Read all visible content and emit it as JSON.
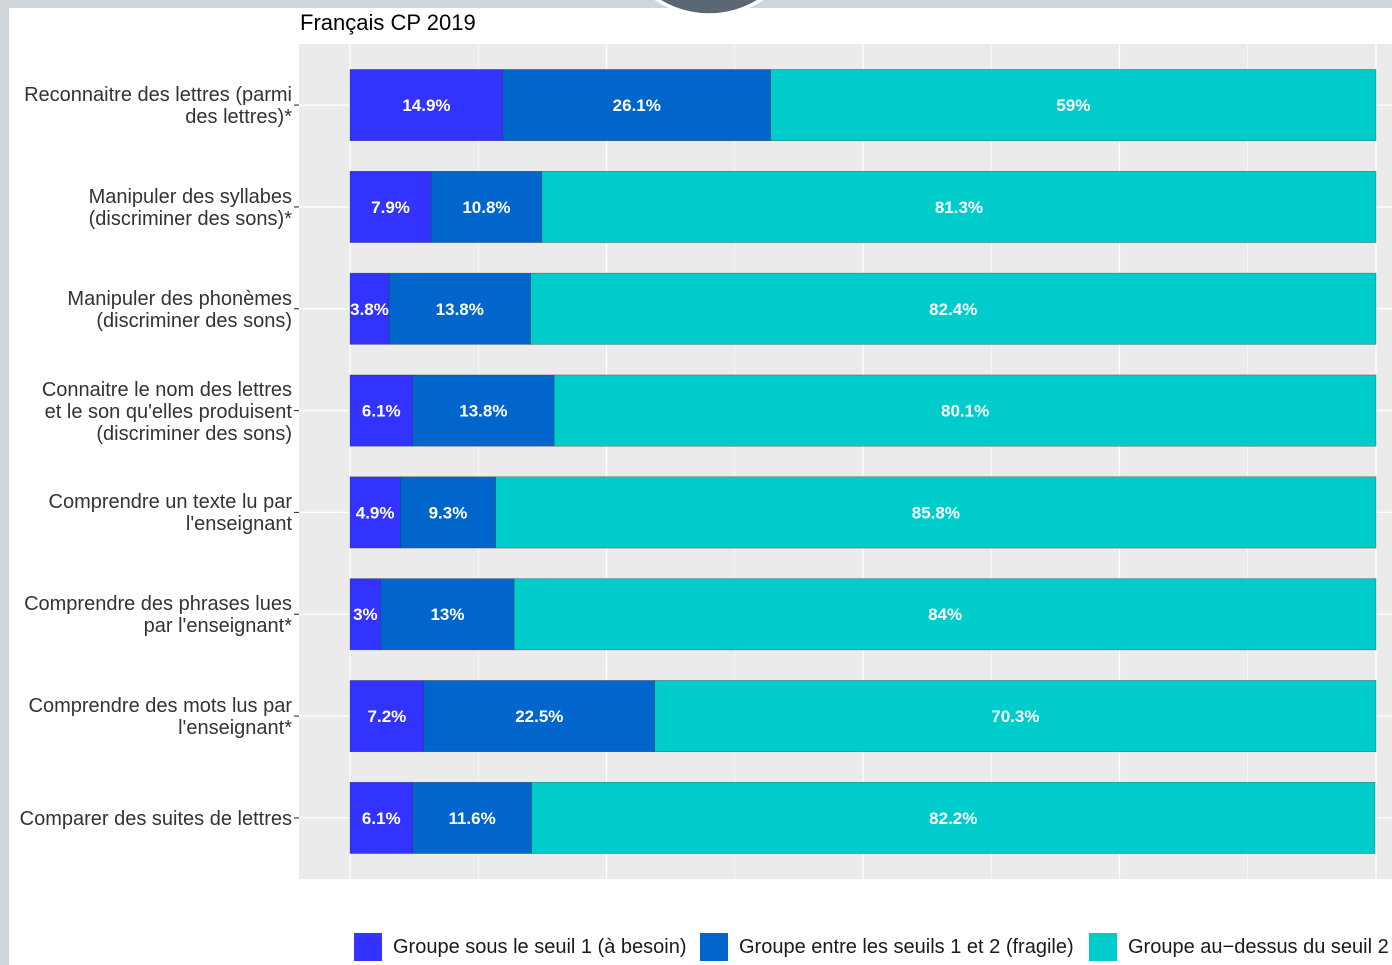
{
  "chart_data": {
    "type": "bar",
    "orientation": "horizontal",
    "stacked": true,
    "title": "Français CP 2019",
    "categories": [
      "Reconnaitre des lettres (parmi\ndes lettres)*",
      "Manipuler des syllabes\n(discriminer des sons)*",
      "Manipuler des phonèmes\n(discriminer des sons)",
      "Connaitre le nom des lettres\net le son qu'elles produisent\n(discriminer des sons)",
      "Comprendre un texte lu par\nl'enseignant",
      "Comprendre des phrases lues\npar l'enseignant*",
      "Comprendre des mots lus par\nl'enseignant*",
      "Comparer des suites de lettres"
    ],
    "series": [
      {
        "name": "Groupe sous le seuil 1 (à besoin)",
        "color": "#3333FF",
        "values": [
          14.9,
          7.9,
          3.8,
          6.1,
          4.9,
          3,
          7.2,
          6.1
        ]
      },
      {
        "name": "Groupe entre les seuils 1 et 2 (fragile)",
        "color": "#0066CC",
        "values": [
          26.1,
          10.8,
          13.8,
          13.8,
          9.3,
          13,
          22.5,
          11.6
        ]
      },
      {
        "name": "Groupe au−dessus du seuil 2",
        "color": "#00CCCC",
        "values": [
          59,
          81.3,
          82.4,
          80.1,
          85.8,
          84,
          70.3,
          82.2
        ]
      }
    ],
    "unit": "%",
    "xlim": [
      0,
      100
    ],
    "grid": true,
    "legend_position": "bottom"
  }
}
